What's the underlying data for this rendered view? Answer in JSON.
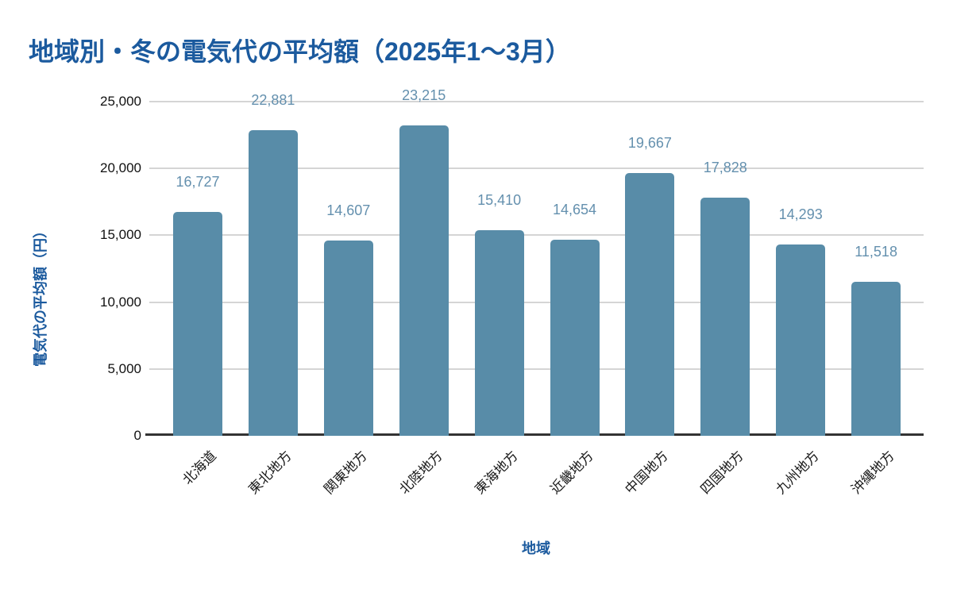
{
  "chart_data": {
    "type": "bar",
    "title": "地域別・冬の電気代の平均額（2025年1～3月）",
    "xlabel": "地域",
    "ylabel": "電気代の平均額（円）",
    "categories": [
      "北海道",
      "東北地方",
      "関東地方",
      "北陸地方",
      "東海地方",
      "近畿地方",
      "中国地方",
      "四国地方",
      "九州地方",
      "沖縄地方"
    ],
    "values": [
      16727,
      22881,
      14607,
      23215,
      15410,
      14654,
      19667,
      17828,
      14293,
      11518
    ],
    "value_labels": [
      "16,727",
      "22,881",
      "14,607",
      "23,215",
      "15,410",
      "14,654",
      "19,667",
      "17,828",
      "14,293",
      "11,518"
    ],
    "ylim": [
      0,
      25000
    ],
    "y_ticks": [
      0,
      5000,
      10000,
      15000,
      20000,
      25000
    ],
    "y_tick_labels": [
      "0",
      "5,000",
      "10,000",
      "15,000",
      "20,000",
      "25,000"
    ],
    "grid": true,
    "legend": false,
    "colors": {
      "bar": "#588CA8",
      "data_label": "#6490AE",
      "title": "#1B5A9E",
      "axis_title": "#1B5A9E",
      "tick_label": "#111111",
      "gridline": "#D5D5D5",
      "axis_line": "#333333"
    }
  }
}
